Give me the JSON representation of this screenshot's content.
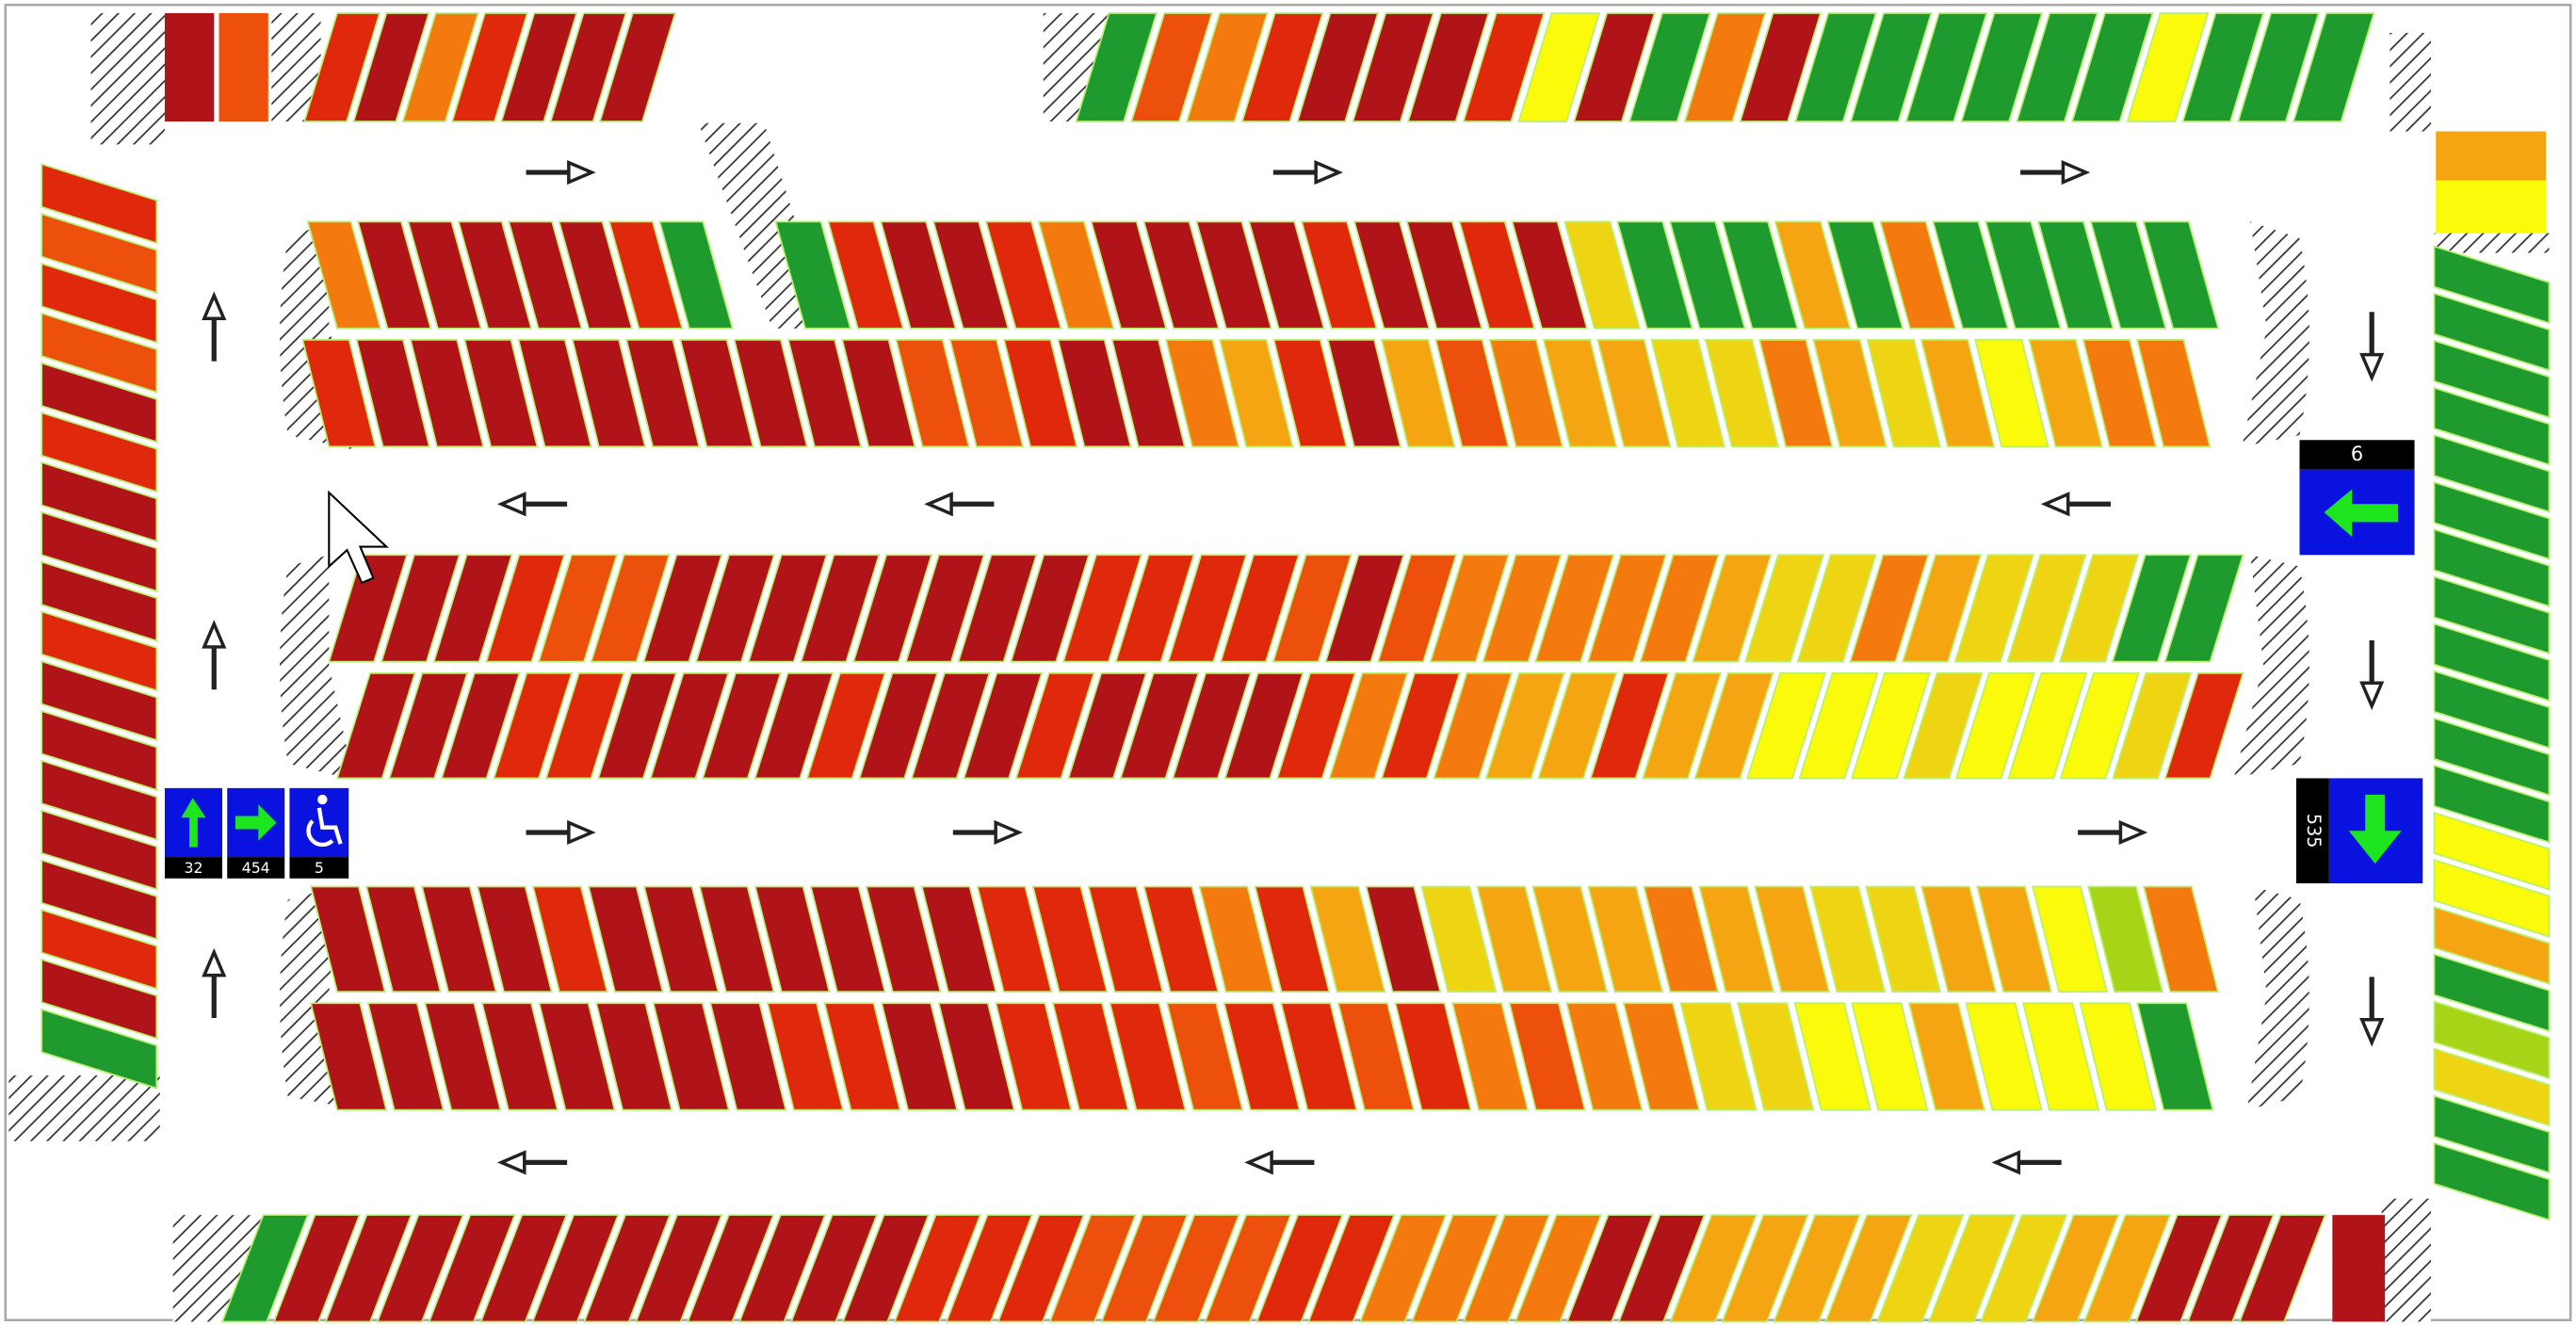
{
  "entry_signs": {
    "straight": "32",
    "right": "454",
    "accessible": "5"
  },
  "side_signs": {
    "left": "6",
    "down": "535"
  }
}
